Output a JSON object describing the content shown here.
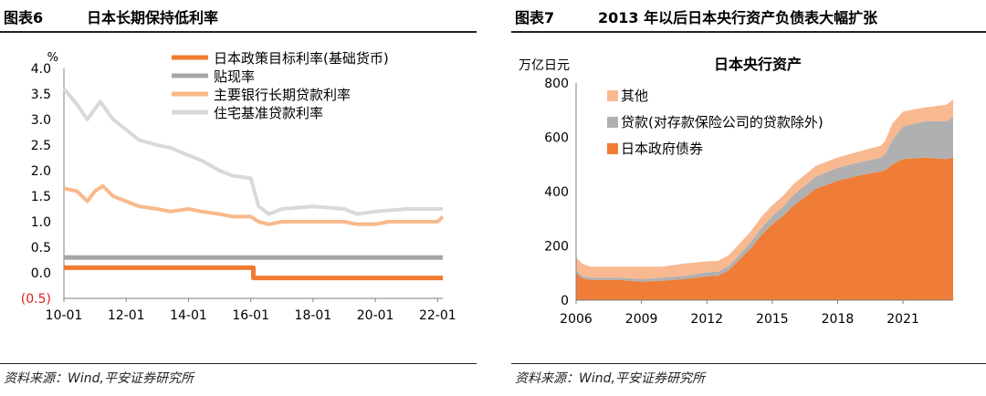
{
  "left": {
    "figure_label": "图表6",
    "title": "日本长期保持低利率",
    "source": "资料来源：Wind,平安证券研究所",
    "chart_data": {
      "type": "line",
      "ylabel": "%",
      "ylim": [
        -0.5,
        4.0
      ],
      "yticks": [
        "4.0",
        "3.5",
        "3.0",
        "2.5",
        "2.0",
        "1.5",
        "1.0",
        "0.5",
        "0.0",
        "(0.5)"
      ],
      "xticks": [
        "10-01",
        "12-01",
        "14-01",
        "16-01",
        "18-01",
        "20-01",
        "22-01"
      ],
      "legend_placement": "top-right",
      "series": [
        {
          "name": "日本政策目标利率(基础货币)",
          "color": "#f07a2e",
          "points": [
            [
              "2010-01",
              0.1
            ],
            [
              "2016-01",
              0.1
            ],
            [
              "2016-02",
              -0.1
            ],
            [
              "2022-03",
              -0.1
            ]
          ]
        },
        {
          "name": "贴现率",
          "color": "#a6a6a6",
          "points": [
            [
              "2010-01",
              0.3
            ],
            [
              "2022-03",
              0.3
            ]
          ]
        },
        {
          "name": "主要银行长期贷款利率",
          "color": "#f8b98a",
          "points": [
            [
              "2010-01",
              1.65
            ],
            [
              "2010-06",
              1.6
            ],
            [
              "2010-10",
              1.4
            ],
            [
              "2011-01",
              1.6
            ],
            [
              "2011-04",
              1.7
            ],
            [
              "2011-08",
              1.5
            ],
            [
              "2012-01",
              1.4
            ],
            [
              "2012-06",
              1.3
            ],
            [
              "2013-01",
              1.25
            ],
            [
              "2013-06",
              1.2
            ],
            [
              "2014-01",
              1.25
            ],
            [
              "2014-06",
              1.2
            ],
            [
              "2015-01",
              1.15
            ],
            [
              "2015-06",
              1.1
            ],
            [
              "2016-01",
              1.1
            ],
            [
              "2016-04",
              1.0
            ],
            [
              "2016-08",
              0.95
            ],
            [
              "2017-01",
              1.0
            ],
            [
              "2018-01",
              1.0
            ],
            [
              "2019-01",
              1.0
            ],
            [
              "2019-06",
              0.95
            ],
            [
              "2020-01",
              0.95
            ],
            [
              "2020-06",
              1.0
            ],
            [
              "2021-01",
              1.0
            ],
            [
              "2022-01",
              1.0
            ],
            [
              "2022-03",
              1.1
            ]
          ]
        },
        {
          "name": "住宅基准贷款利率",
          "color": "#d9d9d9",
          "points": [
            [
              "2010-01",
              3.6
            ],
            [
              "2010-06",
              3.3
            ],
            [
              "2010-10",
              3.0
            ],
            [
              "2011-03",
              3.35
            ],
            [
              "2011-08",
              3.0
            ],
            [
              "2012-01",
              2.8
            ],
            [
              "2012-06",
              2.6
            ],
            [
              "2013-01",
              2.5
            ],
            [
              "2013-06",
              2.45
            ],
            [
              "2014-01",
              2.3
            ],
            [
              "2014-06",
              2.2
            ],
            [
              "2015-01",
              2.0
            ],
            [
              "2015-06",
              1.9
            ],
            [
              "2016-01",
              1.85
            ],
            [
              "2016-04",
              1.3
            ],
            [
              "2016-08",
              1.15
            ],
            [
              "2017-01",
              1.25
            ],
            [
              "2018-01",
              1.3
            ],
            [
              "2019-01",
              1.25
            ],
            [
              "2019-06",
              1.15
            ],
            [
              "2020-01",
              1.2
            ],
            [
              "2021-01",
              1.25
            ],
            [
              "2022-01",
              1.25
            ],
            [
              "2022-03",
              1.25
            ]
          ]
        }
      ]
    }
  },
  "right": {
    "figure_label": "图表7",
    "title": "2013 年以后日本央行资产负债表大幅扩张",
    "source": "资料来源：Wind,平安证券研究所",
    "chart_data": {
      "type": "area",
      "title": "日本央行资产",
      "ylabel": "万亿日元",
      "ylim": [
        0,
        800
      ],
      "yticks": [
        "800",
        "600",
        "400",
        "200",
        "0"
      ],
      "xticks": [
        "2006",
        "2009",
        "2012",
        "2015",
        "2018",
        "2021"
      ],
      "xrange": [
        2006,
        2023.3
      ],
      "legend_placement": "top-left",
      "stacked": true,
      "x": [
        2006.0,
        2006.3,
        2006.7,
        2008.0,
        2009.0,
        2010.0,
        2011.0,
        2012.0,
        2012.5,
        2013.0,
        2013.5,
        2014.0,
        2014.5,
        2015.0,
        2015.5,
        2016.0,
        2016.5,
        2017.0,
        2018.0,
        2019.0,
        2020.0,
        2020.2,
        2020.5,
        2021.0,
        2022.0,
        2023.0,
        2023.3
      ],
      "series": [
        {
          "name": "日本政府债券",
          "color": "#ef7d37",
          "values": [
            100,
            80,
            75,
            75,
            68,
            72,
            78,
            88,
            90,
            110,
            150,
            190,
            240,
            280,
            310,
            350,
            380,
            410,
            440,
            460,
            475,
            480,
            500,
            520,
            525,
            520,
            525
          ]
        },
        {
          "name": "贷款(对存款保险公司的贷款除外)",
          "color": "#b0b0b0",
          "values": [
            8,
            8,
            8,
            8,
            10,
            12,
            12,
            15,
            15,
            15,
            18,
            22,
            25,
            30,
            35,
            40,
            42,
            45,
            48,
            48,
            50,
            60,
            90,
            120,
            135,
            140,
            150
          ]
        },
        {
          "name": "其他",
          "color": "#f8b991",
          "values": [
            50,
            45,
            40,
            40,
            45,
            40,
            45,
            40,
            40,
            40,
            40,
            40,
            42,
            40,
            40,
            40,
            40,
            40,
            38,
            40,
            45,
            50,
            60,
            55,
            50,
            60,
            65
          ]
        }
      ]
    }
  }
}
